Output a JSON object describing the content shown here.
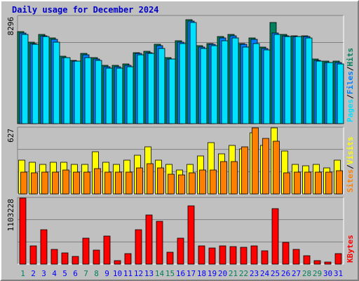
{
  "title": "Daily usage for December 2024",
  "colors": {
    "hits": "#00805c",
    "files": "#0080ff",
    "pages": "#00e0ff",
    "visits": "#ffff00",
    "sites": "#ff8000",
    "kbytes": "#ff0000",
    "weekend_day": "#00805c",
    "weekday": "#0000ff"
  },
  "chart_data": [
    {
      "type": "bar",
      "panel": "requests",
      "max_label": "8296",
      "ylim": [
        0,
        8296
      ],
      "side_labels": [
        "Pages",
        "Files",
        "Hits"
      ],
      "categories": [
        "1",
        "2",
        "3",
        "4",
        "5",
        "6",
        "7",
        "8",
        "9",
        "10",
        "11",
        "12",
        "13",
        "14",
        "15",
        "16",
        "17",
        "18",
        "19",
        "20",
        "21",
        "22",
        "23",
        "24",
        "25",
        "26",
        "27",
        "28",
        "29",
        "30",
        "31"
      ],
      "weekend_days": [
        "1",
        "7",
        "8",
        "14",
        "15",
        "21",
        "22",
        "28",
        "29"
      ],
      "series": [
        {
          "name": "Hits",
          "values": [
            7100,
            6300,
            6900,
            6600,
            5200,
            4900,
            5400,
            5100,
            4500,
            4500,
            4600,
            5500,
            5600,
            6100,
            5100,
            6400,
            8000,
            6000,
            6200,
            6700,
            6900,
            6200,
            6600,
            5900,
            7800,
            6900,
            6800,
            6800,
            5000,
            4800,
            4800
          ]
        },
        {
          "name": "Files",
          "values": [
            7000,
            6200,
            6800,
            6500,
            5100,
            4800,
            5300,
            5000,
            4400,
            4400,
            4500,
            5400,
            5500,
            6000,
            5000,
            6300,
            7900,
            5900,
            6100,
            6600,
            6800,
            6100,
            6500,
            5800,
            7000,
            6800,
            6700,
            6700,
            4900,
            4700,
            4700
          ]
        },
        {
          "name": "Pages",
          "values": [
            6900,
            6100,
            6700,
            6300,
            5100,
            4800,
            5100,
            4900,
            4300,
            4300,
            4400,
            5300,
            5400,
            5800,
            5000,
            6200,
            7800,
            5800,
            6000,
            6400,
            6600,
            5900,
            6200,
            5700,
            6900,
            6700,
            6700,
            6600,
            4800,
            4700,
            4600
          ]
        }
      ]
    },
    {
      "type": "bar",
      "panel": "visitors",
      "max_label": "627",
      "ylim": [
        0,
        627
      ],
      "side_labels": [
        "Sites",
        "Visits"
      ],
      "categories": [
        "1",
        "2",
        "3",
        "4",
        "5",
        "6",
        "7",
        "8",
        "9",
        "10",
        "11",
        "12",
        "13",
        "14",
        "15",
        "16",
        "17",
        "18",
        "19",
        "20",
        "21",
        "22",
        "23",
        "24",
        "25",
        "26",
        "27",
        "28",
        "29",
        "30",
        "31"
      ],
      "series": [
        {
          "name": "Visits",
          "values": [
            320,
            300,
            280,
            300,
            300,
            280,
            280,
            400,
            300,
            280,
            320,
            370,
            450,
            320,
            280,
            230,
            280,
            360,
            490,
            380,
            460,
            430,
            580,
            460,
            630,
            410,
            280,
            270,
            280,
            250,
            320
          ]
        },
        {
          "name": "Sites",
          "values": [
            205,
            200,
            210,
            210,
            230,
            210,
            210,
            240,
            210,
            210,
            210,
            250,
            290,
            250,
            190,
            180,
            200,
            230,
            230,
            310,
            310,
            450,
            630,
            530,
            500,
            200,
            210,
            210,
            210,
            210,
            220
          ]
        }
      ]
    },
    {
      "type": "bar",
      "panel": "kbytes",
      "max_label": "1103228",
      "ylim": [
        0,
        1103228
      ],
      "side_labels": [
        "KBytes"
      ],
      "categories": [
        "1",
        "2",
        "3",
        "4",
        "5",
        "6",
        "7",
        "8",
        "9",
        "10",
        "11",
        "12",
        "13",
        "14",
        "15",
        "16",
        "17",
        "18",
        "19",
        "20",
        "21",
        "22",
        "23",
        "24",
        "25",
        "26",
        "27",
        "28",
        "29",
        "30",
        "31"
      ],
      "series": [
        {
          "name": "KBytes",
          "values": [
            1103228,
            300000,
            570000,
            250000,
            185000,
            130000,
            440000,
            230000,
            470000,
            60000,
            180000,
            570000,
            820000,
            720000,
            200000,
            440000,
            970000,
            300000,
            270000,
            300000,
            290000,
            280000,
            300000,
            220000,
            930000,
            360000,
            250000,
            140000,
            60000,
            40000,
            180000
          ]
        }
      ]
    }
  ]
}
